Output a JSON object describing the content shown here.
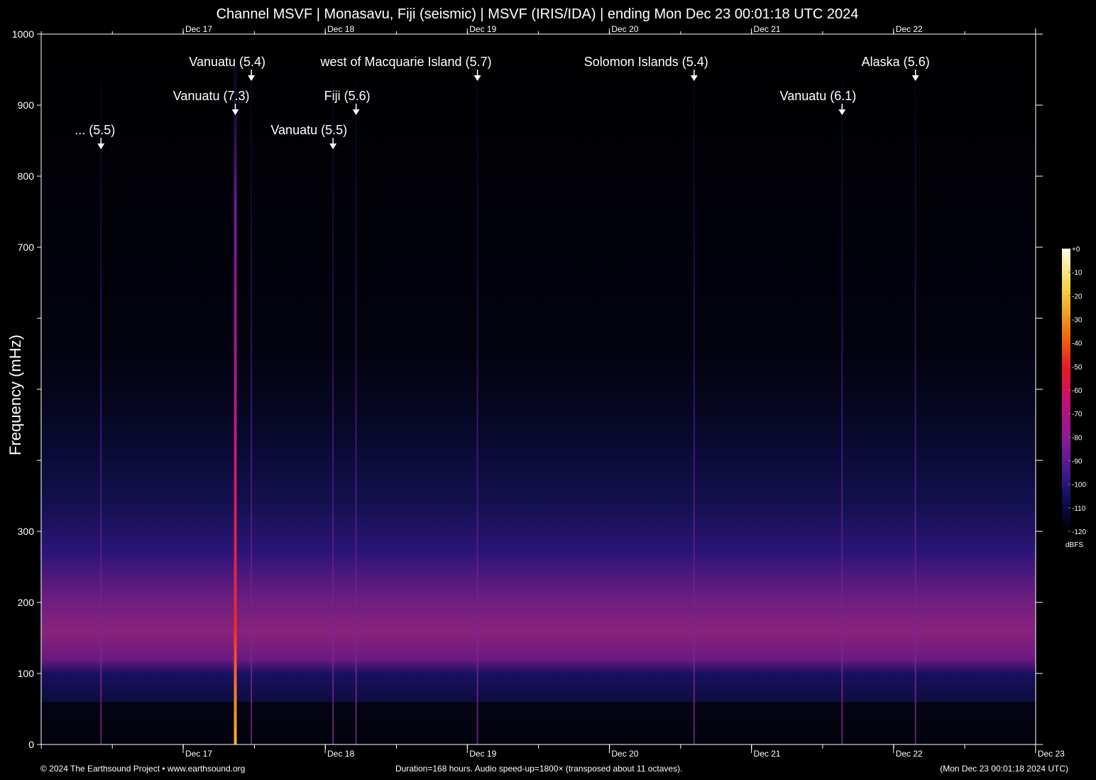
{
  "chart_data": {
    "type": "heatmap",
    "title": "Channel MSVF | Monasavu, Fiji (seismic) | MSVF (IRIS/IDA) | ending Mon Dec 23 00:01:18 UTC 2024",
    "ylabel": "Frequency (mHz)",
    "xlabel": "",
    "ylim": [
      0,
      1000
    ],
    "xlim_hours": [
      -168,
      0
    ],
    "y_tick_labels": [
      "0",
      "100",
      "200",
      "300",
      "",
      "",
      "",
      "700",
      "800",
      "900",
      "1000"
    ],
    "x_tick_labels": [
      {
        "label": "Dec 17",
        "hours_before_end": 144.02
      },
      {
        "label": "Dec 18",
        "hours_before_end": 120.02
      },
      {
        "label": "Dec 19",
        "hours_before_end": 96.02
      },
      {
        "label": "Dec 20",
        "hours_before_end": 72.02
      },
      {
        "label": "Dec 21",
        "hours_before_end": 48.02
      },
      {
        "label": "Dec 22",
        "hours_before_end": 24.02
      },
      {
        "label": "Dec 23",
        "hours_before_end": 0.02
      }
    ],
    "events": [
      {
        "label": "... (5.5)",
        "hours_before_end": 157.9
      },
      {
        "label": "Vanuatu (7.3)",
        "hours_before_end": 135.2
      },
      {
        "label": "Vanuatu (5.4)",
        "hours_before_end": 132.5
      },
      {
        "label": "Vanuatu (5.5)",
        "hours_before_end": 118.7
      },
      {
        "label": "Fiji (5.6)",
        "hours_before_end": 114.8
      },
      {
        "label": "west of Macquarie Island (5.7)",
        "hours_before_end": 94.3
      },
      {
        "label": "Solomon Islands (5.4)",
        "hours_before_end": 57.7
      },
      {
        "label": "Vanuatu (6.1)",
        "hours_before_end": 32.7
      },
      {
        "label": "Alaska (5.6)",
        "hours_before_end": 20.3
      }
    ],
    "colorbar": {
      "unit": "dBFS",
      "range": [
        -120,
        0
      ],
      "tick_labels": [
        "+0",
        "-10",
        "-20",
        "-30",
        "-40",
        "-50",
        "-60",
        "-70",
        "-80",
        "-90",
        "-100",
        "-110",
        "-120"
      ]
    },
    "colors": {
      "background": "#000000",
      "low": "#0a0a40",
      "mid": "#8a1a7a",
      "high": "#e8202a",
      "peak": "#fffde0"
    }
  },
  "footer": {
    "copyright": "© 2024 The Earthsound Project • www.earthsound.org",
    "info": "Duration=168 hours. Audio speed-up=1800× (transposed about 11 octaves).",
    "end_time": "(Mon Dec 23 00:01:18 2024 UTC)"
  }
}
